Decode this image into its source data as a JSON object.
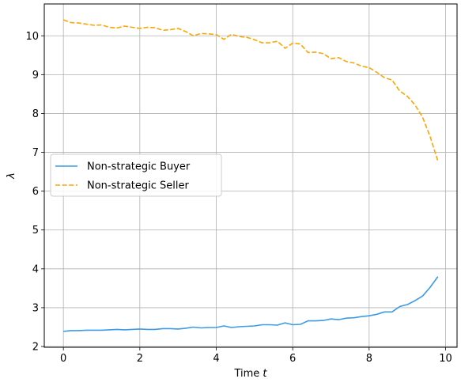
{
  "chart_data": {
    "type": "line",
    "title": "",
    "xlabel": "Time",
    "xlabel_var": "t",
    "ylabel": "λ",
    "xlim": [
      -0.5,
      10.3
    ],
    "ylim": [
      1.98,
      10.82
    ],
    "xticks": [
      0,
      2,
      4,
      6,
      8,
      10
    ],
    "yticks": [
      2,
      3,
      4,
      5,
      6,
      7,
      8,
      9,
      10
    ],
    "grid": true,
    "legend_position": "center-left",
    "series": [
      {
        "name": "Non-strategic Buyer",
        "color": "#3b9be6",
        "style": "solid",
        "x": [
          0,
          0.2,
          0.4,
          0.6,
          0.8,
          1.0,
          1.2,
          1.4,
          1.6,
          1.8,
          2.0,
          2.2,
          2.4,
          2.6,
          2.8,
          3.0,
          3.2,
          3.4,
          3.6,
          3.8,
          4.0,
          4.2,
          4.4,
          4.6,
          4.8,
          5.0,
          5.2,
          5.4,
          5.6,
          5.8,
          6.0,
          6.2,
          6.4,
          6.6,
          6.8,
          7.0,
          7.2,
          7.4,
          7.6,
          7.8,
          8.0,
          8.2,
          8.4,
          8.6,
          8.8,
          9.0,
          9.2,
          9.4,
          9.6,
          9.8
        ],
        "y": [
          2.39,
          2.41,
          2.41,
          2.42,
          2.42,
          2.42,
          2.43,
          2.44,
          2.43,
          2.44,
          2.45,
          2.44,
          2.44,
          2.46,
          2.46,
          2.45,
          2.47,
          2.5,
          2.48,
          2.49,
          2.49,
          2.53,
          2.49,
          2.51,
          2.52,
          2.53,
          2.56,
          2.56,
          2.55,
          2.61,
          2.56,
          2.57,
          2.66,
          2.66,
          2.67,
          2.71,
          2.69,
          2.73,
          2.74,
          2.77,
          2.79,
          2.83,
          2.89,
          2.89,
          3.03,
          3.08,
          3.18,
          3.3,
          3.53,
          3.8
        ]
      },
      {
        "name": "Non-strategic Seller",
        "color": "#ffa500",
        "style": "dashed",
        "x": [
          0,
          0.2,
          0.4,
          0.6,
          0.8,
          1.0,
          1.2,
          1.4,
          1.6,
          1.8,
          2.0,
          2.2,
          2.4,
          2.6,
          2.8,
          3.0,
          3.2,
          3.4,
          3.6,
          3.8,
          4.0,
          4.2,
          4.4,
          4.6,
          4.8,
          5.0,
          5.2,
          5.4,
          5.6,
          5.8,
          6.0,
          6.2,
          6.4,
          6.6,
          6.8,
          7.0,
          7.2,
          7.4,
          7.6,
          7.8,
          8.0,
          8.2,
          8.4,
          8.6,
          8.8,
          9.0,
          9.2,
          9.4,
          9.6,
          9.8
        ],
        "y": [
          10.41,
          10.34,
          10.33,
          10.3,
          10.27,
          10.28,
          10.22,
          10.2,
          10.25,
          10.22,
          10.19,
          10.22,
          10.21,
          10.14,
          10.16,
          10.19,
          10.11,
          10.0,
          10.06,
          10.05,
          10.03,
          9.91,
          10.04,
          9.98,
          9.96,
          9.9,
          9.82,
          9.82,
          9.86,
          9.68,
          9.81,
          9.79,
          9.57,
          9.58,
          9.54,
          9.41,
          9.44,
          9.34,
          9.3,
          9.22,
          9.18,
          9.06,
          8.92,
          8.86,
          8.58,
          8.44,
          8.22,
          7.9,
          7.39,
          6.77
        ]
      }
    ]
  }
}
